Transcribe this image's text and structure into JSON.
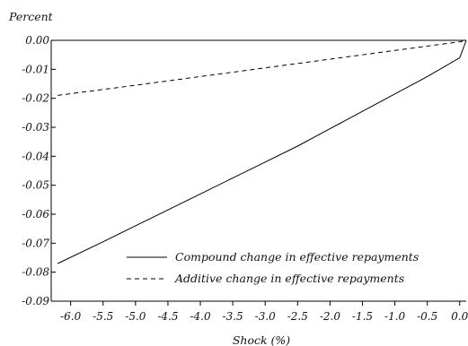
{
  "chart_data": {
    "type": "line",
    "ylabel": "Percent",
    "xlabel": "Shock (%)",
    "xlim": [
      -6.3,
      0.1
    ],
    "ylim": [
      -0.09,
      0.0
    ],
    "x_ticks": [
      -6.0,
      -5.5,
      -5.0,
      -4.5,
      -4.0,
      -3.5,
      -3.0,
      -2.5,
      -2.0,
      -1.5,
      -1.0,
      -0.5,
      0.0
    ],
    "x_tick_labels": [
      "-6.0",
      "-5.5",
      "-5.0",
      "-4.5",
      "-4.0",
      "-3.5",
      "-3.0",
      "-2.5",
      "-2.0",
      "-1.5",
      "-1.0",
      "-0.5",
      "0.0"
    ],
    "y_ticks": [
      0.0,
      -0.01,
      -0.02,
      -0.03,
      -0.04,
      -0.05,
      -0.06,
      -0.07,
      -0.08,
      -0.09
    ],
    "y_tick_labels": [
      "0.00",
      "-0.01",
      "-0.02",
      "-0.03",
      "-0.04",
      "-0.05",
      "-0.06",
      "-0.07",
      "-0.08",
      "-0.09"
    ],
    "grid": false,
    "legend_position": "bottom-right",
    "series": [
      {
        "name": "Compound change in effective repayments",
        "style": "solid",
        "color": "#000000",
        "x": [
          -6.2,
          -5.5,
          -5.0,
          -4.5,
          -4.0,
          -3.5,
          -3.0,
          -2.5,
          -2.0,
          -1.5,
          -1.0,
          -0.5,
          0.0,
          0.1
        ],
        "y": [
          -0.077,
          -0.0695,
          -0.064,
          -0.0585,
          -0.053,
          -0.0475,
          -0.042,
          -0.0365,
          -0.0305,
          -0.0245,
          -0.0185,
          -0.0125,
          -0.006,
          0.0
        ]
      },
      {
        "name": "Additive change in effective repayments",
        "style": "dashed",
        "color": "#000000",
        "x": [
          -6.2,
          -5.0,
          -4.0,
          -3.0,
          -2.0,
          -1.0,
          0.0,
          0.1
        ],
        "y": [
          -0.019,
          -0.0155,
          -0.0125,
          -0.0095,
          -0.0065,
          -0.0035,
          -0.0005,
          0.0
        ]
      }
    ]
  }
}
